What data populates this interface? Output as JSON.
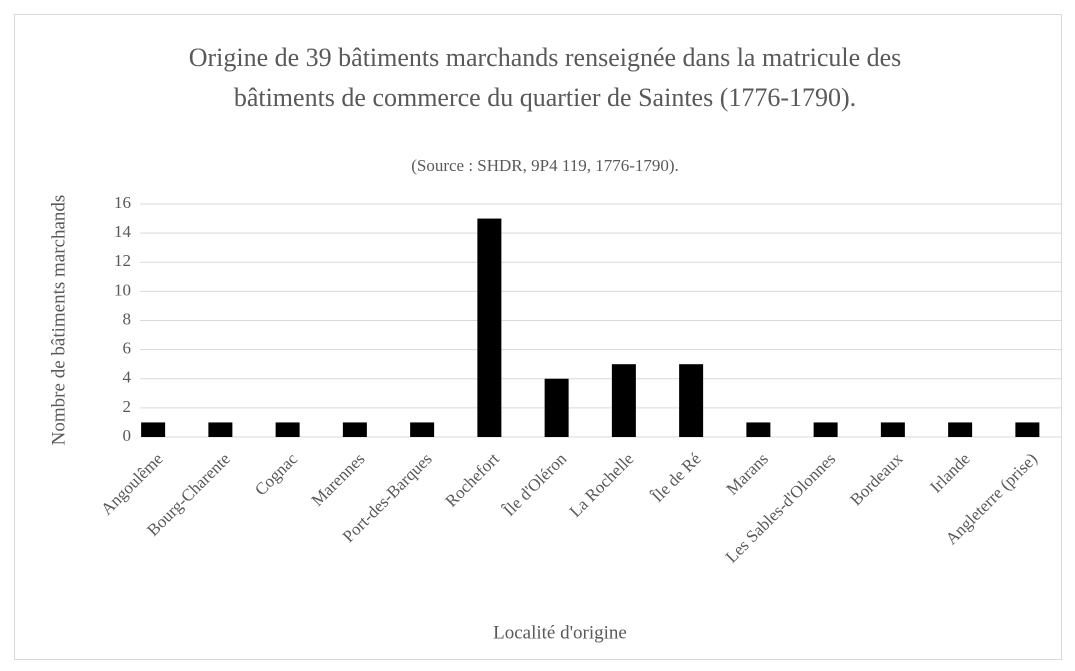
{
  "chart_data": {
    "type": "bar",
    "title": [
      "Origine de 39 bâtiments marchands renseignée dans la matricule des",
      "bâtiments de commerce du quartier de Saintes (1776-1790)."
    ],
    "subtitle": "(Source : SHDR, 9P4 119, 1776-1790).",
    "y_label": "Nombre de bâtiments marchands",
    "x_label": "Localité d'origine",
    "categories": [
      "Angoulême",
      "Bourg-Charente",
      "Cognac",
      "Marennes",
      "Port-des-Barques",
      "Rochefort",
      "Île d'Oléron",
      "La Rochelle",
      "Île de Ré",
      "Marans",
      "Les Sables-d'Olonnes",
      "Bordeaux",
      "Irlande",
      "Angleterre (prise)"
    ],
    "values": [
      1,
      1,
      1,
      1,
      1,
      15,
      4,
      5,
      5,
      1,
      1,
      1,
      1,
      1
    ],
    "color": "#000000",
    "ylim": [
      0,
      16
    ],
    "yticks": [
      0,
      2,
      4,
      6,
      8,
      10,
      12,
      14,
      16
    ],
    "grid": true
  }
}
